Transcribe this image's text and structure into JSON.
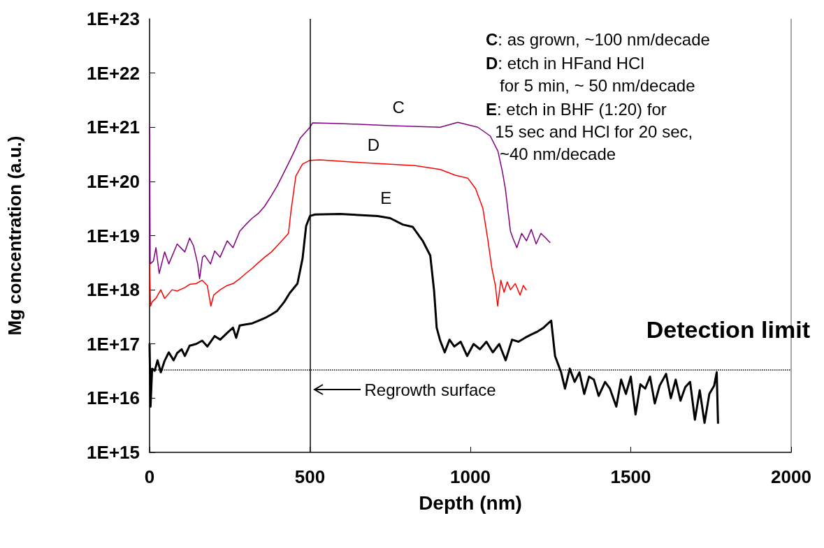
{
  "chart_data": {
    "type": "line",
    "xlabel": "Depth (nm)",
    "ylabel": "Mg concentration (a.u.)",
    "log": "y",
    "grid": false,
    "marker": "none",
    "line_style": "solid",
    "xlim": [
      0,
      2000
    ],
    "xticks": [
      0,
      500,
      1000,
      1500,
      2000
    ],
    "ylim": [
      1000000000000000.0,
      1e+23
    ],
    "yticks": [
      {
        "value": 1000000000000000.0,
        "label": "1E+15"
      },
      {
        "value": 1e+16,
        "label": "1E+16"
      },
      {
        "value": 1e+17,
        "label": "1E+17"
      },
      {
        "value": 1e+18,
        "label": "1E+18"
      },
      {
        "value": 1e+19,
        "label": "1E+19"
      },
      {
        "value": 1e+20,
        "label": "1E+20"
      },
      {
        "value": 1e+21,
        "label": "1E+21"
      },
      {
        "value": 1e+22,
        "label": "1E+22"
      },
      {
        "value": 1e+23,
        "label": "1E+23"
      }
    ],
    "series": [
      {
        "name": "C",
        "color": "#800080",
        "x": [
          0,
          2,
          12,
          20,
          30,
          47,
          60,
          86,
          110,
          125,
          137,
          150,
          156,
          165,
          172,
          190,
          203,
          220,
          242,
          260,
          281,
          300,
          320,
          340,
          359,
          380,
          398,
          420,
          437,
          455,
          469,
          500,
          508,
          594,
          750,
          906,
          961,
          1023,
          1062,
          1086,
          1100,
          1109,
          1125,
          1133,
          1145,
          1160,
          1175,
          1190,
          1205,
          1220,
          1235,
          1248
        ],
        "values": [
          1e+21,
          3e+18,
          3.4e+18,
          6e+18,
          2e+18,
          5e+18,
          3e+18,
          7e+18,
          5e+18,
          9e+18,
          6.5e+18,
          3e+18,
          1.6e+18,
          4e+18,
          4.3e+18,
          3e+18,
          5.2e+18,
          4e+18,
          8e+18,
          6e+18,
          1.2e+19,
          1.6e+19,
          2.1e+19,
          2.6e+19,
          3.5e+19,
          5.5e+19,
          8.3e+19,
          1.5e+20,
          2.4e+20,
          4e+20,
          6.2e+20,
          1e+21,
          1.2e+21,
          1.17e+21,
          1.07e+21,
          1e+21,
          1.23e+21,
          1e+21,
          6.9e+20,
          3.6e+20,
          1.5e+20,
          7.4e+19,
          1.2e+19,
          8.9e+18,
          6e+18,
          1.1e+19,
          8e+18,
          1.3e+19,
          7e+18,
          1.1e+19,
          9e+18,
          7.5e+18
        ]
      },
      {
        "name": "D",
        "color": "#ff0000",
        "x": [
          0,
          3,
          8,
          20,
          35,
          47,
          70,
          86,
          110,
          125,
          145,
          164,
          180,
          191,
          200,
          220,
          242,
          260,
          281,
          300,
          320,
          340,
          359,
          380,
          398,
          420,
          433,
          441,
          456,
          477,
          500,
          531,
          672,
          828,
          906,
          953,
          992,
          1016,
          1039,
          1055,
          1067,
          1078,
          1085,
          1095,
          1105,
          1115,
          1125,
          1140,
          1155,
          1165,
          1174
        ],
        "values": [
          3e+18,
          5e+17,
          6e+17,
          7e+17,
          1e+18,
          6.9e+17,
          1e+18,
          9.5e+17,
          1.1e+18,
          1.26e+18,
          1.3e+18,
          1.5e+18,
          1.2e+18,
          5e+17,
          8e+17,
          1e+18,
          1.2e+18,
          1.3e+18,
          1.6e+18,
          2e+18,
          2.5e+18,
          3.2e+18,
          4e+18,
          5e+18,
          6.5e+18,
          9e+18,
          1.1e+19,
          2.9e+19,
          1.26e+20,
          2.1e+20,
          2.45e+20,
          2.5e+20,
          2.2e+20,
          1.95e+20,
          1.66e+20,
          1.3e+20,
          1.15e+20,
          7.4e+19,
          3.2e+19,
          8e+18,
          2.5e+18,
          1.2e+18,
          5e+17,
          1.5e+18,
          9e+17,
          1.4e+18,
          1e+18,
          1.3e+18,
          8e+17,
          1.2e+18,
          1e+18
        ]
      },
      {
        "name": "E",
        "color": "#000000",
        "x": [
          0,
          3,
          8,
          16,
          25,
          35,
          47,
          60,
          75,
          86,
          100,
          110,
          125,
          145,
          164,
          180,
          203,
          220,
          242,
          260,
          270,
          281,
          300,
          320,
          340,
          359,
          380,
          398,
          420,
          437,
          461,
          477,
          488,
          500,
          516,
          594,
          711,
          750,
          789,
          820,
          852,
          875,
          887,
          895,
          906,
          920,
          935,
          950,
          970,
          990,
          1010,
          1030,
          1050,
          1070,
          1090,
          1110,
          1130,
          1150,
          1170,
          1190,
          1210,
          1228,
          1252,
          1264,
          1275,
          1283,
          1295,
          1310,
          1325,
          1340,
          1355,
          1370,
          1385,
          1400,
          1420,
          1435,
          1455,
          1470,
          1485,
          1500,
          1515,
          1530,
          1545,
          1560,
          1575,
          1590,
          1610,
          1625,
          1640,
          1655,
          1670,
          1685,
          1700,
          1715,
          1730,
          1745,
          1760,
          1768,
          1772
        ],
        "values": [
          1e+17,
          7000000000000000.0,
          3.5e+16,
          3.2e+16,
          5e+16,
          3e+16,
          4.9e+16,
          7e+16,
          5e+16,
          6.8e+16,
          8e+16,
          6e+16,
          9.3e+16,
          1e+17,
          1.15e+17,
          9e+16,
          1.4e+17,
          1.2e+17,
          1.6e+17,
          2e+17,
          1.3e+17,
          2.2e+17,
          2.3e+17,
          2.4e+17,
          2.7e+17,
          3e+17,
          3.5e+17,
          4.1e+17,
          6e+17,
          8.7e+17,
          1.3e+18,
          3.8e+18,
          1.5e+19,
          2.3e+19,
          2.45e+19,
          2.5e+19,
          2.3e+19,
          2.1e+19,
          1.6e+19,
          1.45e+19,
          7.9e+18,
          4.3e+18,
          9.5e+17,
          2e+17,
          1.15e+17,
          7e+16,
          1.2e+17,
          9e+16,
          1.1e+17,
          6e+16,
          1e+17,
          8e+16,
          1.1e+17,
          7e+16,
          1e+17,
          5e+16,
          1.2e+17,
          1.1e+17,
          1.3e+17,
          1.5e+17,
          1.7e+17,
          2e+17,
          2.7e+17,
          6e+16,
          4e+16,
          3e+16,
          1.5e+16,
          3.5e+16,
          2e+16,
          3e+16,
          1.2e+16,
          2.5e+16,
          2.2e+16,
          1.1e+16,
          2e+16,
          1.5e+16,
          7000000000000000.0,
          2.2e+16,
          1.2e+16,
          2.5e+16,
          5000000000000000.0,
          1.8e+16,
          1.5e+16,
          2.5e+16,
          8000000000000000.0,
          1.7e+16,
          2.8e+16,
          1e+16,
          2.2e+16,
          9000000000000000.0,
          1.6e+16,
          2e+16,
          4000000000000000.0,
          1.4e+16,
          3500000000000000.0,
          1.2e+16,
          1.7e+16,
          3e+16,
          3500000000000000.0
        ]
      }
    ],
    "ref_lines": [
      {
        "axis": "x",
        "value": 500,
        "label": "Regrowth surface",
        "color": "#000000",
        "line_style": "solid"
      },
      {
        "axis": "y",
        "value": 3.3e+16,
        "label": "Detection limit",
        "color": "#000000",
        "line_style": "dotted"
      }
    ],
    "annotations": [
      "C: as grown, ~100 nm/decade",
      "D: etch in HFand HCl\n   for 5 min, ~ 50 nm/decade",
      "E: etch in BHF (1:20) for\n  15 sec and HCl for 20 sec,\n   ~40 nm/decade"
    ]
  }
}
